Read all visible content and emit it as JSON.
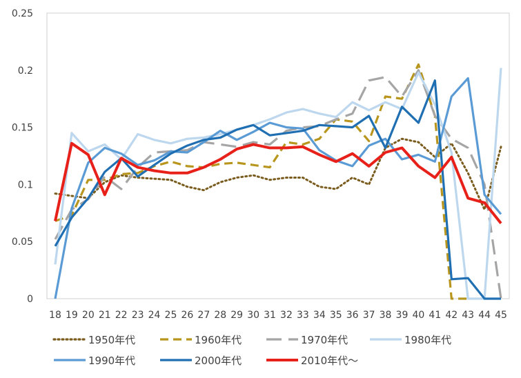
{
  "chart_data": {
    "type": "line",
    "title": "",
    "xlabel": "",
    "ylabel": "",
    "x": [
      18,
      19,
      20,
      21,
      22,
      23,
      24,
      25,
      26,
      27,
      28,
      29,
      30,
      31,
      32,
      33,
      34,
      35,
      36,
      37,
      38,
      39,
      40,
      41,
      42,
      43,
      44,
      45
    ],
    "ylim": [
      0,
      0.25
    ],
    "yticks": [
      "0",
      "0.05",
      "0.1",
      "0.15",
      "0.2",
      "0.25"
    ],
    "grid": false,
    "legend_position": "bottom",
    "series": [
      {
        "name": "1950年代",
        "color": "#7a5c1e",
        "dash": "dotted",
        "values": [
          0.092,
          0.09,
          0.088,
          0.102,
          0.108,
          0.106,
          0.105,
          0.104,
          0.098,
          0.095,
          0.102,
          0.106,
          0.108,
          0.104,
          0.106,
          0.106,
          0.098,
          0.096,
          0.106,
          0.1,
          0.132,
          0.14,
          0.137,
          0.124,
          0.136,
          0.11,
          0.078,
          0.133
        ]
      },
      {
        "name": "1960年代",
        "color": "#b8961e",
        "dash": "dashed",
        "values": [
          0.068,
          0.073,
          0.104,
          0.104,
          0.109,
          0.11,
          0.116,
          0.12,
          0.116,
          0.115,
          0.118,
          0.119,
          0.117,
          0.115,
          0.137,
          0.135,
          0.14,
          0.157,
          0.155,
          0.138,
          0.177,
          0.175,
          0.205,
          0.16,
          0.0,
          0.0,
          null,
          null
        ]
      },
      {
        "name": "1970年代",
        "color": "#a5a5a5",
        "dash": "longdash",
        "values": [
          0.052,
          0.078,
          0.087,
          0.107,
          0.096,
          0.115,
          0.128,
          0.129,
          0.13,
          0.137,
          0.135,
          0.133,
          0.137,
          0.135,
          0.147,
          0.15,
          0.151,
          0.157,
          0.162,
          0.191,
          0.194,
          0.177,
          0.2,
          0.16,
          0.14,
          0.132,
          0.1,
          0.0
        ]
      },
      {
        "name": "1980年代",
        "color": "#bdd7ee",
        "dash": "solid",
        "values": [
          0.03,
          0.145,
          0.129,
          0.135,
          0.122,
          0.144,
          0.139,
          0.136,
          0.14,
          0.141,
          0.144,
          0.148,
          0.152,
          0.157,
          0.163,
          0.166,
          0.162,
          0.159,
          0.172,
          0.165,
          0.172,
          0.166,
          0.198,
          0.17,
          0.128,
          0.0,
          0.0,
          0.202
        ]
      },
      {
        "name": "1990年代",
        "color": "#5b9bd5",
        "dash": "solid",
        "values": [
          0.0,
          0.079,
          0.119,
          0.132,
          0.127,
          0.117,
          0.121,
          0.129,
          0.128,
          0.137,
          0.147,
          0.139,
          0.146,
          0.154,
          0.15,
          0.149,
          0.13,
          0.121,
          0.116,
          0.134,
          0.14,
          0.122,
          0.126,
          0.12,
          0.177,
          0.193,
          0.091,
          0.074
        ]
      },
      {
        "name": "2000年代",
        "color": "#1f6fb2",
        "dash": "solid",
        "values": [
          0.046,
          0.071,
          0.088,
          0.111,
          0.123,
          0.107,
          0.117,
          0.127,
          0.134,
          0.139,
          0.141,
          0.148,
          0.152,
          0.143,
          0.145,
          0.147,
          0.152,
          0.151,
          0.15,
          0.16,
          0.132,
          0.168,
          0.154,
          0.191,
          0.017,
          0.018,
          0.0,
          0.0
        ]
      },
      {
        "name": "2010年代〜",
        "color": "#e8201a",
        "dash": "solid",
        "values": [
          0.068,
          0.136,
          0.126,
          0.091,
          0.123,
          0.115,
          0.112,
          0.11,
          0.11,
          0.115,
          0.122,
          0.131,
          0.135,
          0.132,
          0.132,
          0.133,
          0.126,
          0.12,
          0.127,
          0.116,
          0.128,
          0.132,
          0.116,
          0.106,
          0.124,
          0.088,
          0.084,
          0.066
        ]
      }
    ]
  }
}
